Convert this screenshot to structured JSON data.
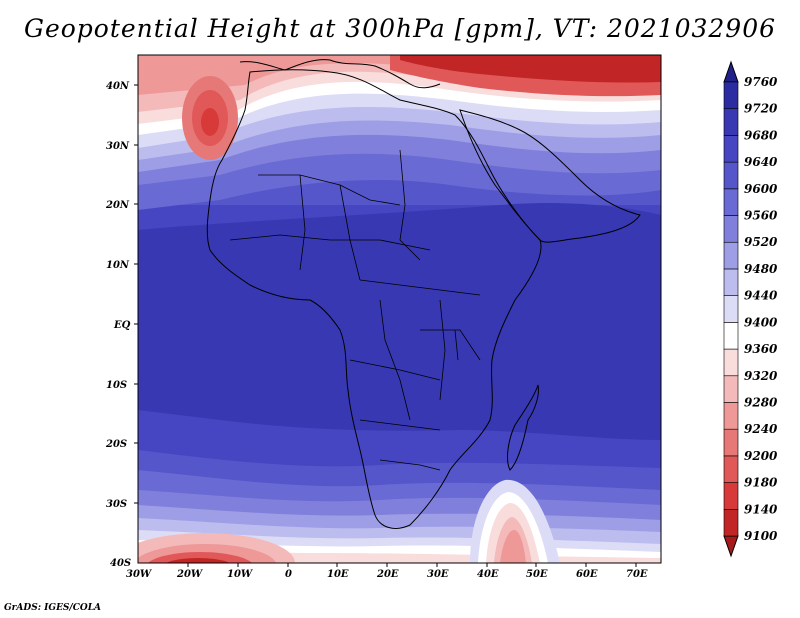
{
  "title": "Geopotential Height at 300hPa [gpm], VT: 2021032906",
  "credit": "GrADS: IGES/COLA",
  "map": {
    "lon_range": [
      -30,
      75
    ],
    "lat_range": [
      -40,
      45
    ],
    "lon_ticks": [
      "30W",
      "20W",
      "10W",
      "0",
      "10E",
      "20E",
      "30E",
      "40E",
      "50E",
      "60E",
      "70E"
    ],
    "lat_ticks": [
      "40S",
      "30S",
      "20S",
      "10S",
      "EQ",
      "10N",
      "20N",
      "30N",
      "40N"
    ]
  },
  "colorbar": {
    "levels": [
      "9100",
      "9140",
      "9180",
      "9200",
      "9240",
      "9280",
      "9320",
      "9360",
      "9400",
      "9440",
      "9480",
      "9520",
      "9560",
      "9600",
      "9640",
      "9680",
      "9720",
      "9760"
    ],
    "colors": [
      "#a51b1b",
      "#c22525",
      "#d83a3a",
      "#e05858",
      "#e77878",
      "#ee9898",
      "#f4baba",
      "#f9dcdc",
      "#ffffff",
      "#dcdcf6",
      "#bcbcef",
      "#9e9ee6",
      "#8080dc",
      "#6a6ad4",
      "#5656cb",
      "#4646c2",
      "#3838b3",
      "#2c2ca2",
      "#20208a"
    ]
  }
}
